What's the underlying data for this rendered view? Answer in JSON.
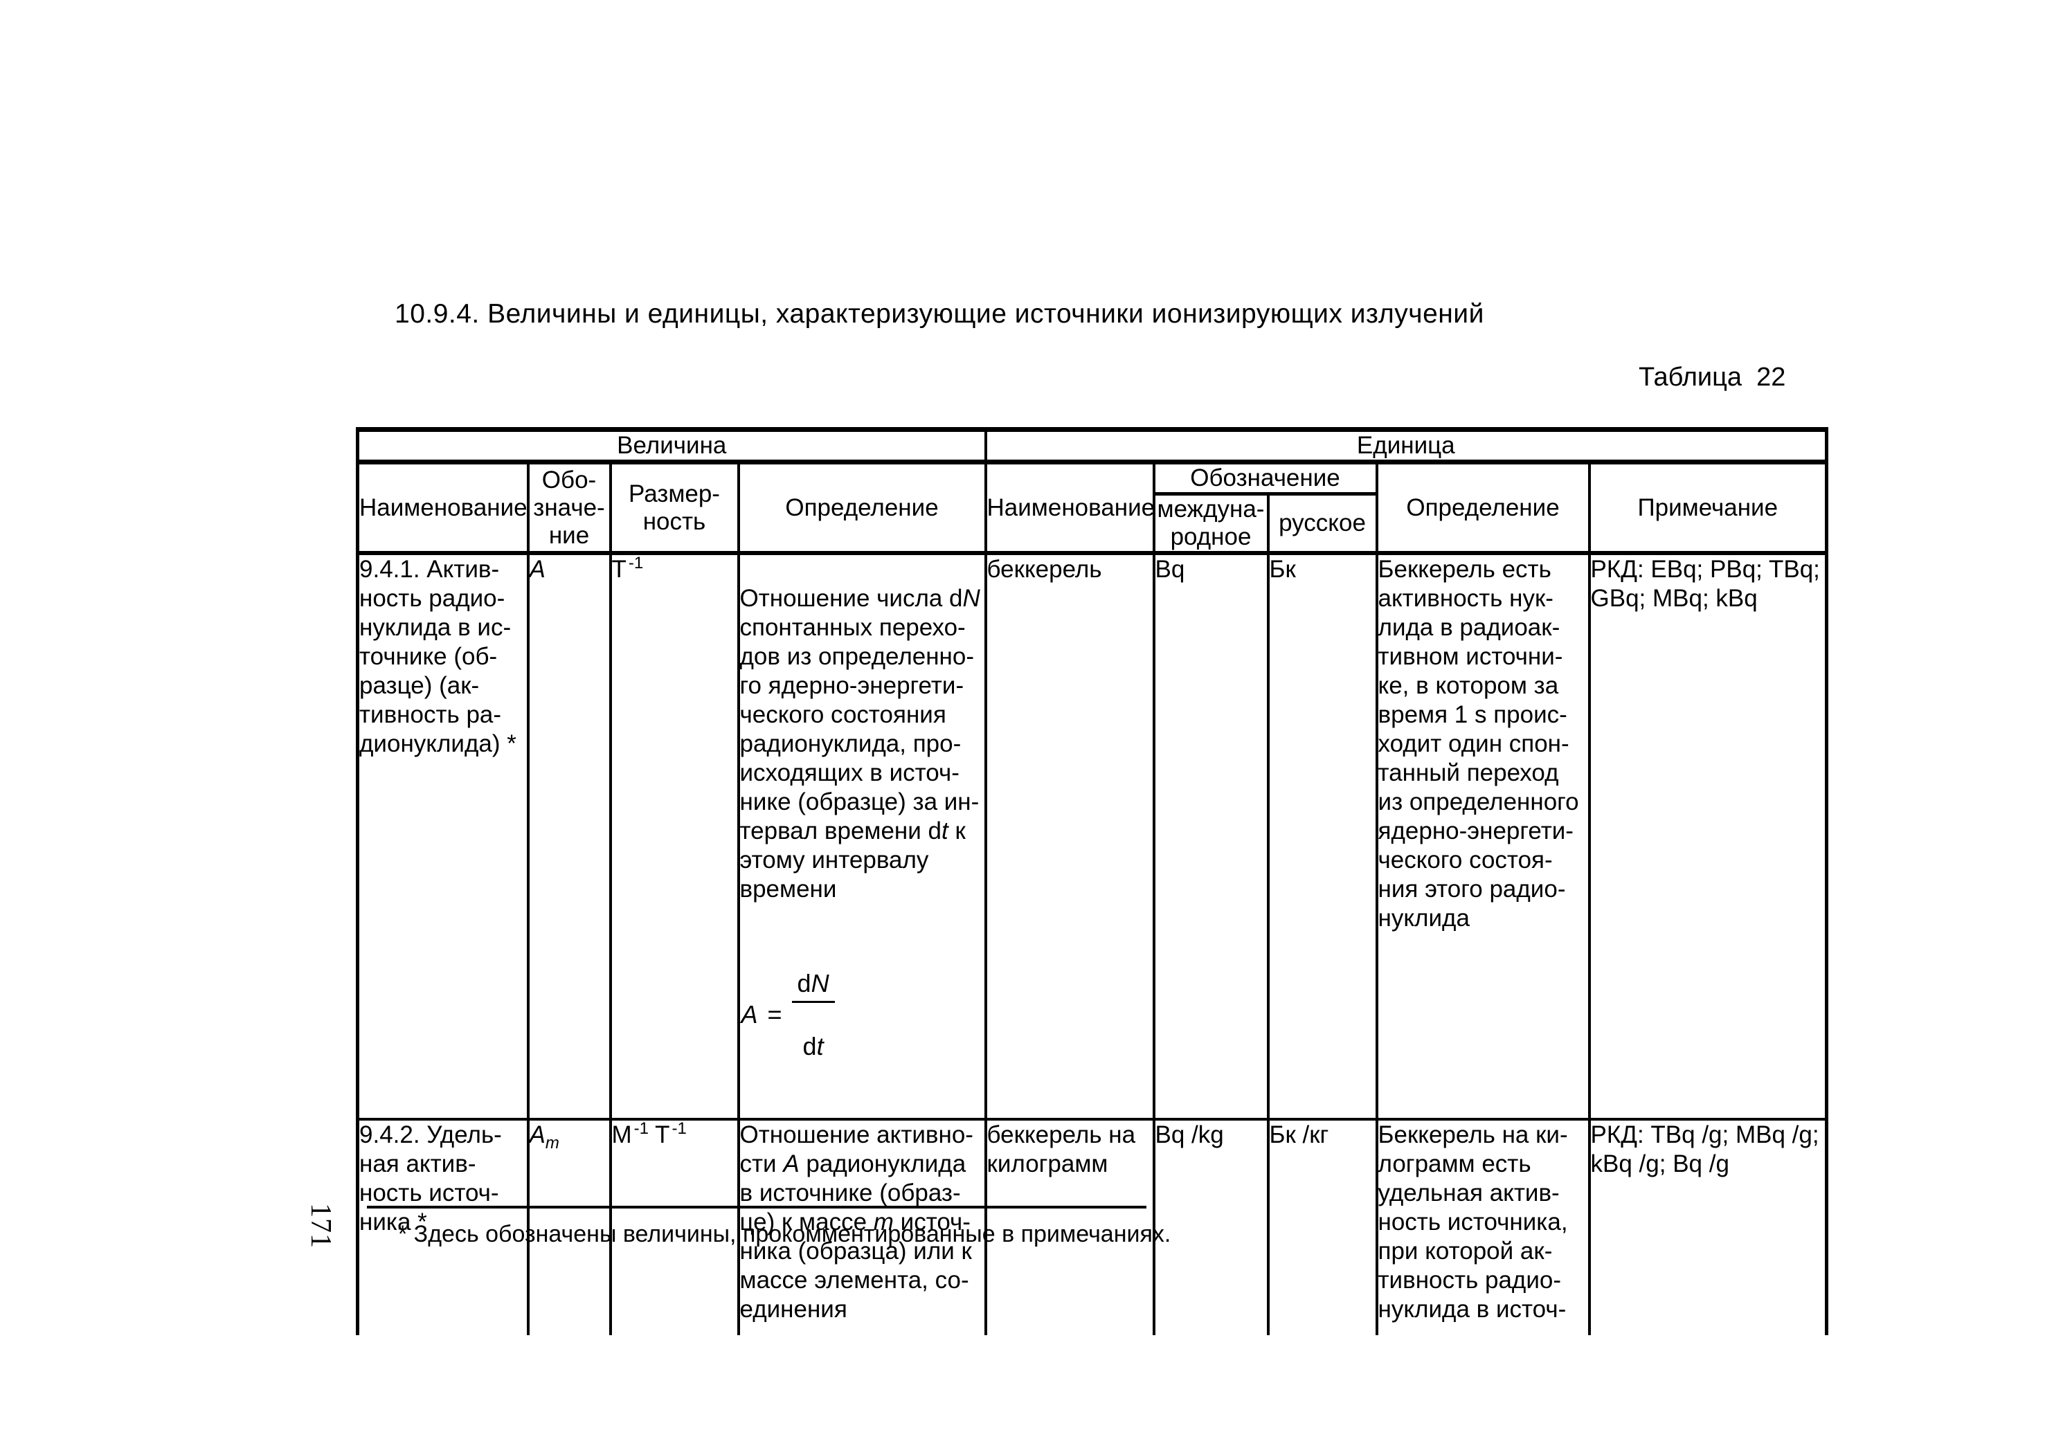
{
  "page": {
    "title": "10.9.4. Величины и единицы, характеризующие источники ионизирующих излучений",
    "caption": "Таблица  22",
    "footnote": "* Здесь обозначены величины, прокомментированные в примечаниях.",
    "page_number": "171"
  },
  "table": {
    "group_quantity": "Величина",
    "group_unit": "Единица",
    "col_name_quantity": "Наименование",
    "col_symbol": "Обо-\nзначе-\nние",
    "col_dimension": "Размер-\nность",
    "col_definition_quantity": "Определение",
    "col_name_unit": "Наименование",
    "col_designation": "Обозначение",
    "col_designation_intl": "междуна-\nродное",
    "col_designation_ru": "русское",
    "col_definition_unit": "Определение",
    "col_note": "Примечание",
    "rows": [
      {
        "name": "9.4.1. Актив-\nность радио-\nнуклида в ис-\nточнике (об-\nразце) (ак-\nтивность ра-\nдионуклида) *",
        "symbol_html": "<i>A</i>",
        "dimension_html": "T<sup>-1</sup>",
        "definition_html": "Отношение числа d<i>N</i>\nспонтанных перехо-\nдов из определенно-\nго ядерно-энергети-\nческого состояния\nрадионуклида, про-\nисходящих в источ-\nнике (образце) за ин-\nтервал времени d<i>t</i> к\nэтому интервалу\nвремени",
        "formula": {
          "lhs_html": "<i>A</i>",
          "eq": "=",
          "num_html": "d<i>N</i>",
          "den_html": "d<i>t</i>"
        },
        "unit_name": "беккерель",
        "unit_intl": "Bq",
        "unit_ru": "Бк",
        "unit_definition": "Беккерель есть\nактивность нук-\nлида в радиоак-\nтивном источни-\nке, в котором за\nвремя 1 s проис-\nходит один спон-\nтанный переход\nиз определенного\nядерно-энергети-\nческого состоя-\nния этого радио-\nнуклида",
        "note": "РКД: EBq; PBq; TBq;\nGBq; MBq; kBq"
      },
      {
        "name": "9.4.2. Удель-\nная актив-\nность источ-\nника *",
        "symbol_html": "<i>A<sub>m</sub></i>",
        "dimension_html": "M<sup>-1</sup> T<sup>-1</sup>",
        "definition_html": "Отношение активно-\nсти <i>A</i> радионуклида\nв источнике (образ-\nце) к массе <i>m</i> источ-\nника (образца) или к\nмассе элемента, со-\nединения",
        "unit_name": "беккерель на\nкилограмм",
        "unit_intl": "Bq /kg",
        "unit_ru": "Бк /кг",
        "unit_definition": "Беккерель на ки-\nлограмм есть\nудельная актив-\nность источника,\nпри которой ак-\nтивность радио-\nнуклида в источ-",
        "note": "РКД: TBq /g; MBq /g;\nkBq /g; Bq /g"
      }
    ]
  }
}
